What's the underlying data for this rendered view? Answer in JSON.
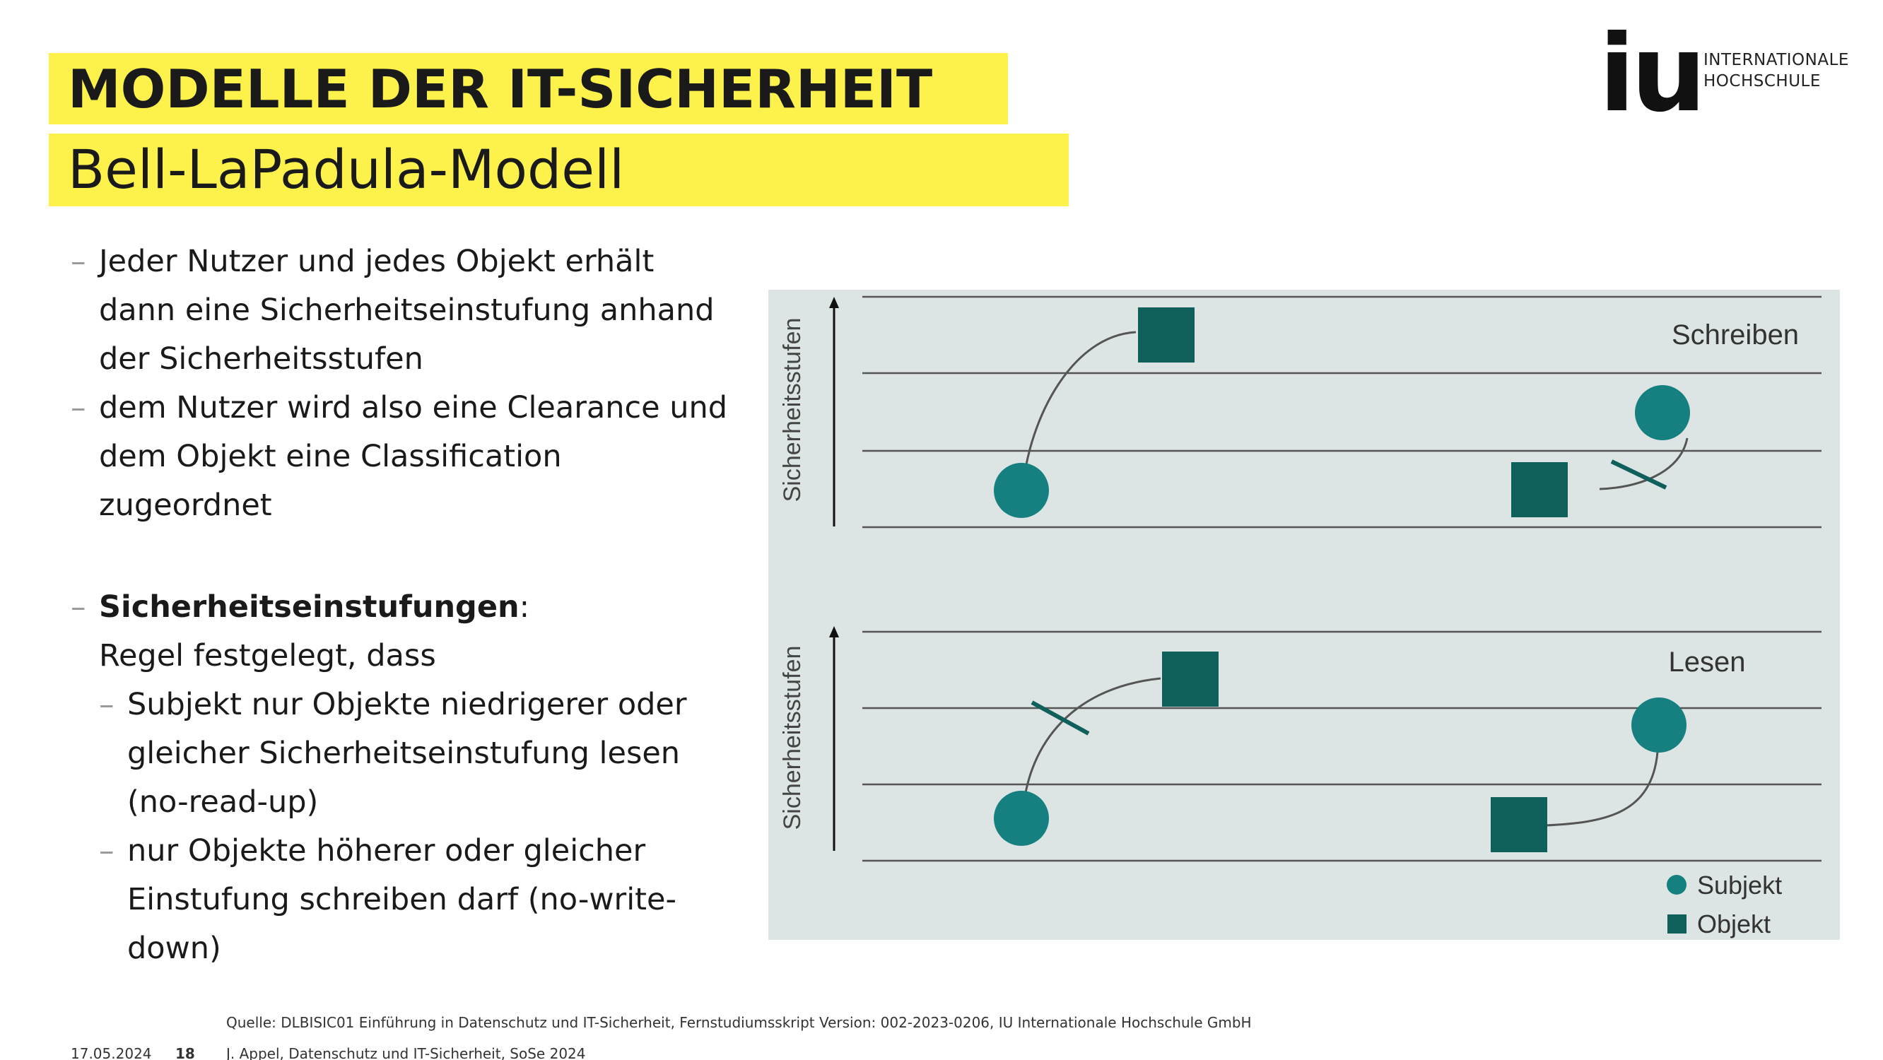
{
  "slide": {
    "title": "MODELLE DER IT-SICHERHEIT",
    "subtitle": "Bell-LaPadula-Modell"
  },
  "logo": {
    "mark": "iu",
    "line1": "INTERNATIONALE",
    "line2": "HOCHSCHULE"
  },
  "bullets": [
    {
      "prefix": "",
      "text": "Jeder Nutzer und jedes Objekt erhält dann eine Sicherheitseinstufung anhand der Sicherheitsstufen"
    },
    {
      "prefix": "",
      "text": "dem Nutzer wird also eine Clearance und dem Objekt eine Classification zugeordnet"
    },
    {
      "prefix": "Sicherheitseinstufungen",
      "text": ":",
      "line2": "Regel festgelegt, dass"
    },
    {
      "prefix": "",
      "text": "Subjekt nur Objekte niedrigerer oder gleicher Sicherheitseinstufung lesen (no-read-up)"
    },
    {
      "prefix": "",
      "text": "nur Objekte höherer oder gleicher Einstufung schreiben darf (no-write-down)"
    }
  ],
  "figure": {
    "top_panel_label": "Schreiben",
    "bottom_panel_label": "Lesen",
    "axis_label_top": "Sicherheitsstufen",
    "axis_label_bottom": "Sicherheitsstufen",
    "legend_subject": "Subjekt",
    "legend_object": "Objekt",
    "colors": {
      "subject": "#167f80",
      "object": "#0f5f5a",
      "line": "#555555",
      "background": "#dde5e4"
    }
  },
  "footer": {
    "source": "Quelle: DLBISIC01 Einführung in Datenschutz und IT-Sicherheit, Fernstudiumsskript Version: 002-2023-0206, IU Internationale Hochschule GmbH",
    "date": "17.05.2024",
    "page": "18",
    "author": "J. Appel, Datenschutz und IT-Sicherheit, SoSe 2024"
  }
}
